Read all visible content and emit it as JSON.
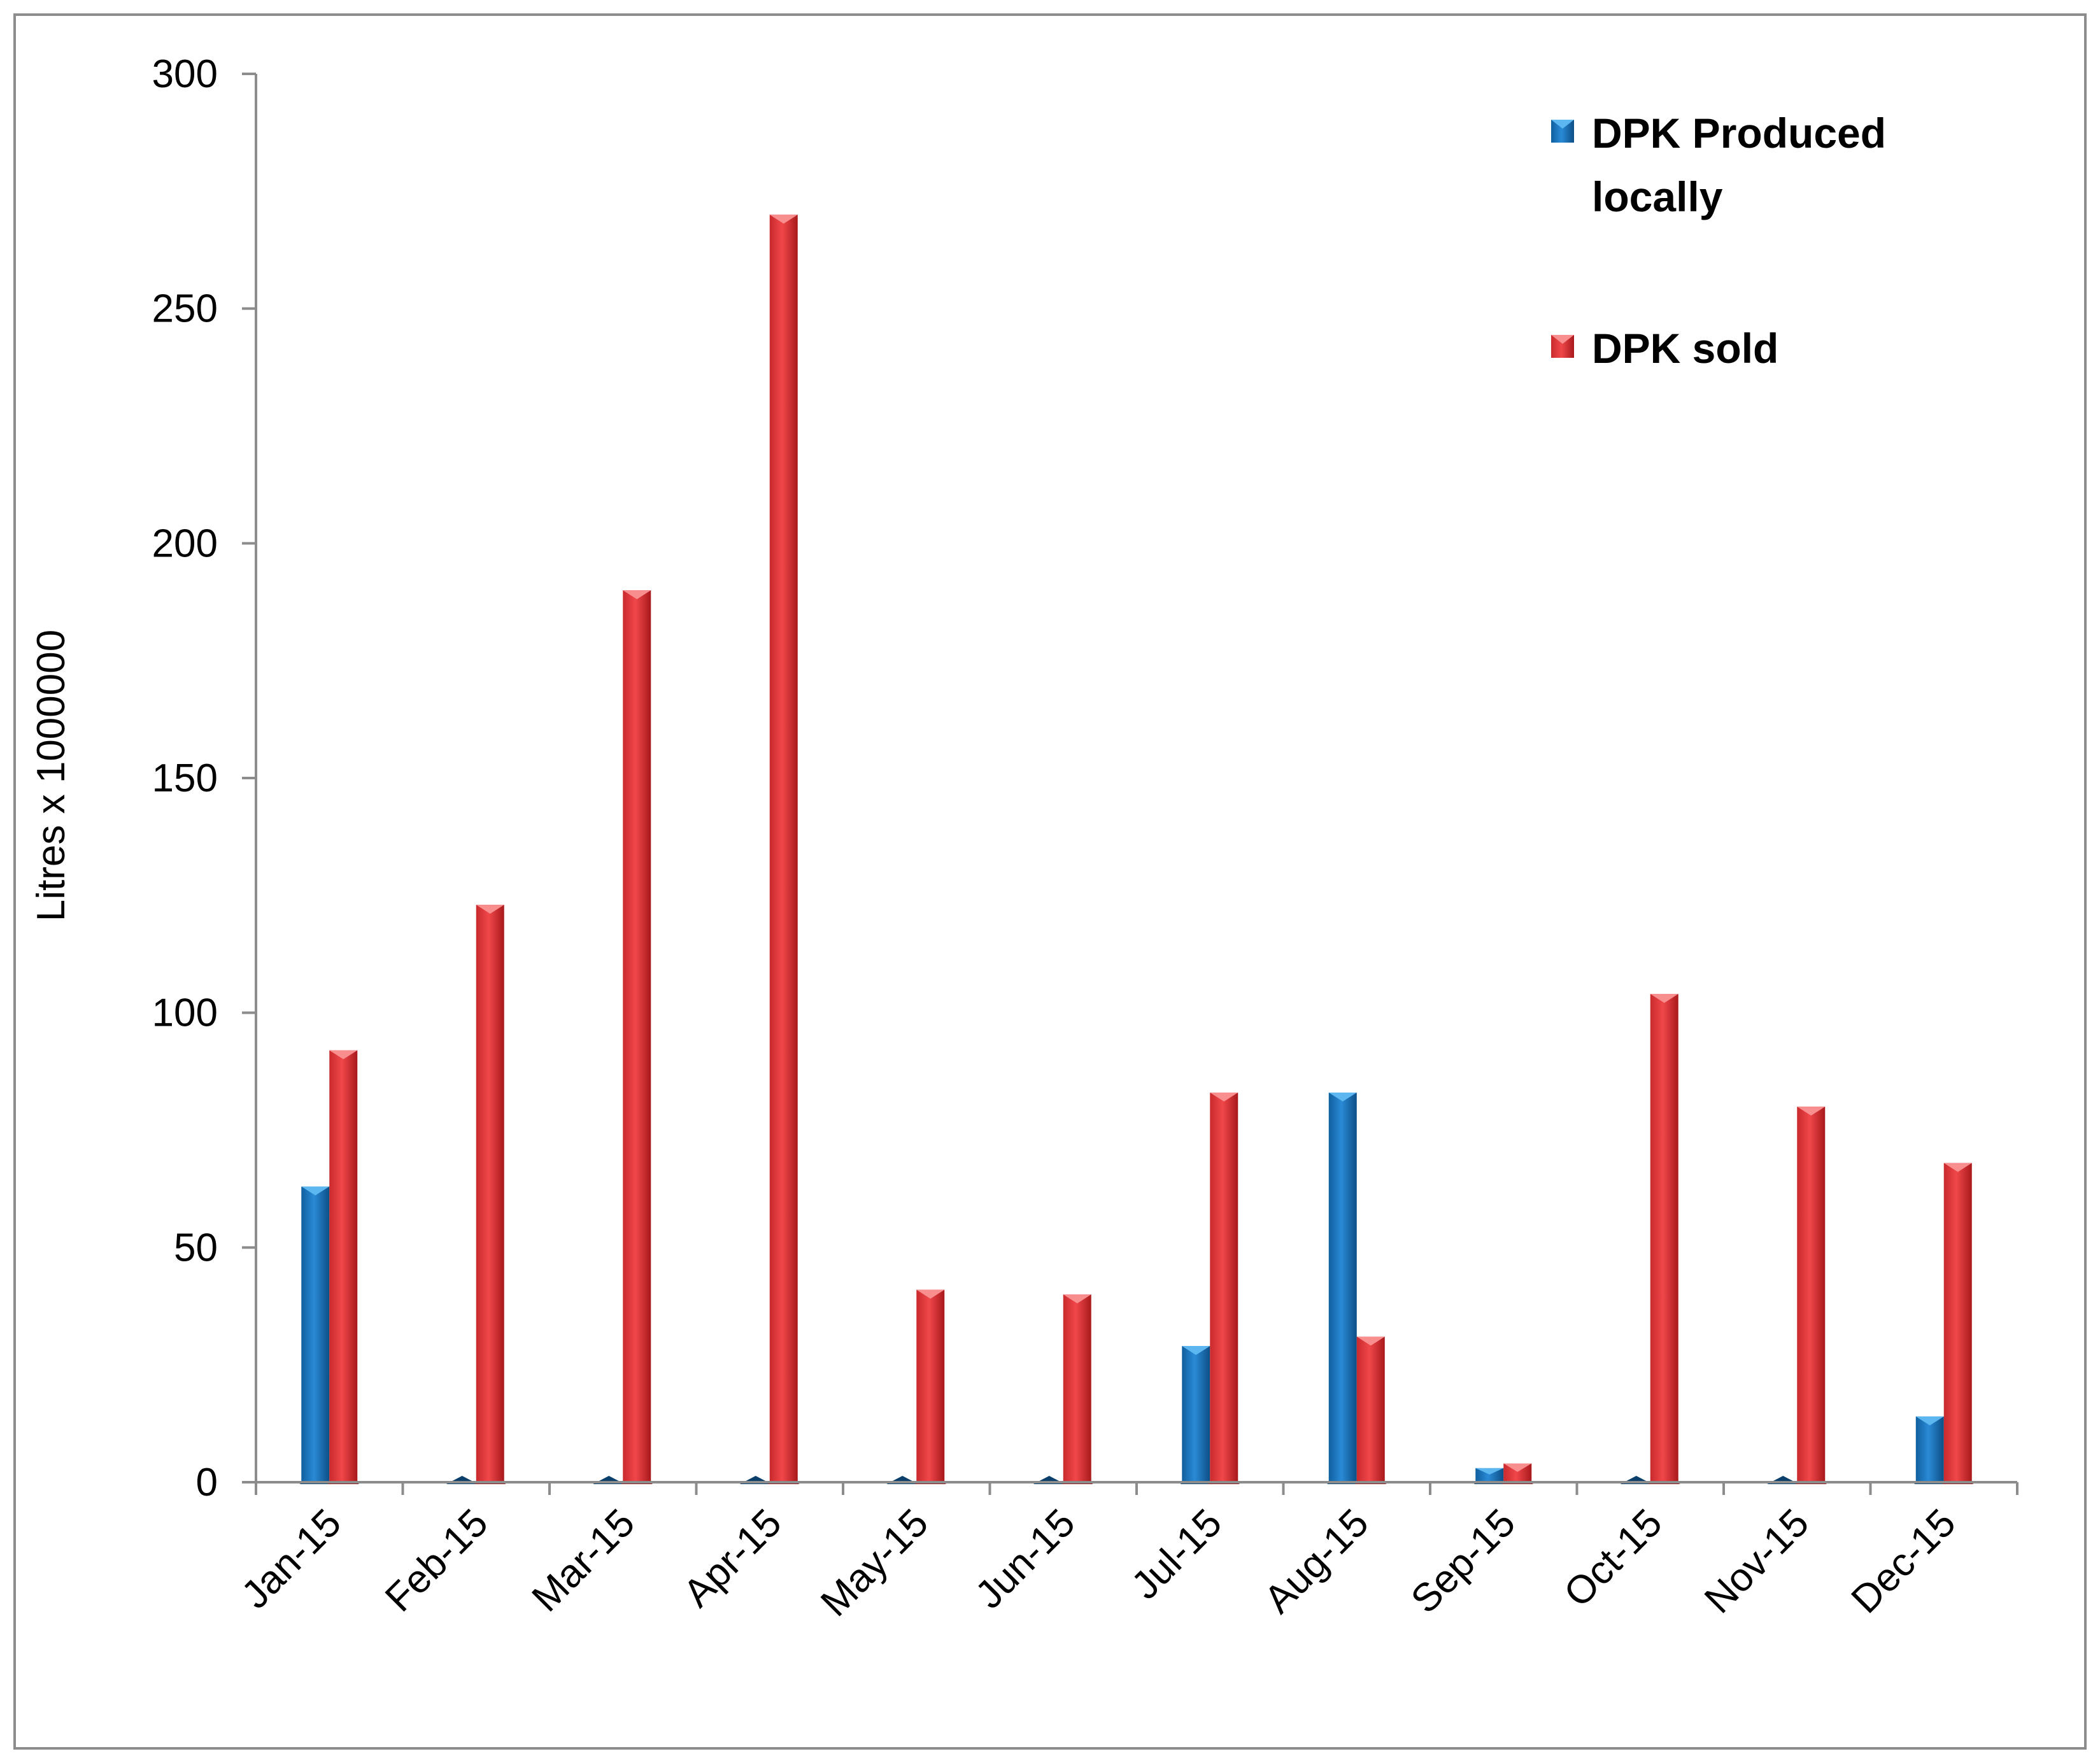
{
  "chart_data": {
    "type": "bar",
    "title": "",
    "xlabel": "",
    "ylabel": "Litres x 1000000",
    "ylim": [
      0,
      300
    ],
    "yticks": [
      0,
      50,
      100,
      150,
      200,
      250,
      300
    ],
    "grid": false,
    "legend_position": "top-right",
    "categories": [
      "Jan-15",
      "Feb-15",
      "Mar-15",
      "Apr-15",
      "May-15",
      "Jun-15",
      "Jul-15",
      "Aug-15",
      "Sep-15",
      "Oct-15",
      "Nov-15",
      "Dec-15"
    ],
    "series": [
      {
        "name": "DPK Produced locally",
        "legend_lines": [
          "DPK Produced",
          "locally"
        ],
        "color": "#1f7cc4",
        "values": [
          63,
          0,
          0,
          0,
          0,
          0,
          29,
          83,
          3,
          0,
          0,
          14
        ]
      },
      {
        "name": "DPK sold",
        "legend_lines": [
          "DPK sold"
        ],
        "color": "#e8383b",
        "values": [
          92,
          123,
          190,
          270,
          41,
          40,
          83,
          31,
          4,
          104,
          80,
          68
        ]
      }
    ]
  }
}
